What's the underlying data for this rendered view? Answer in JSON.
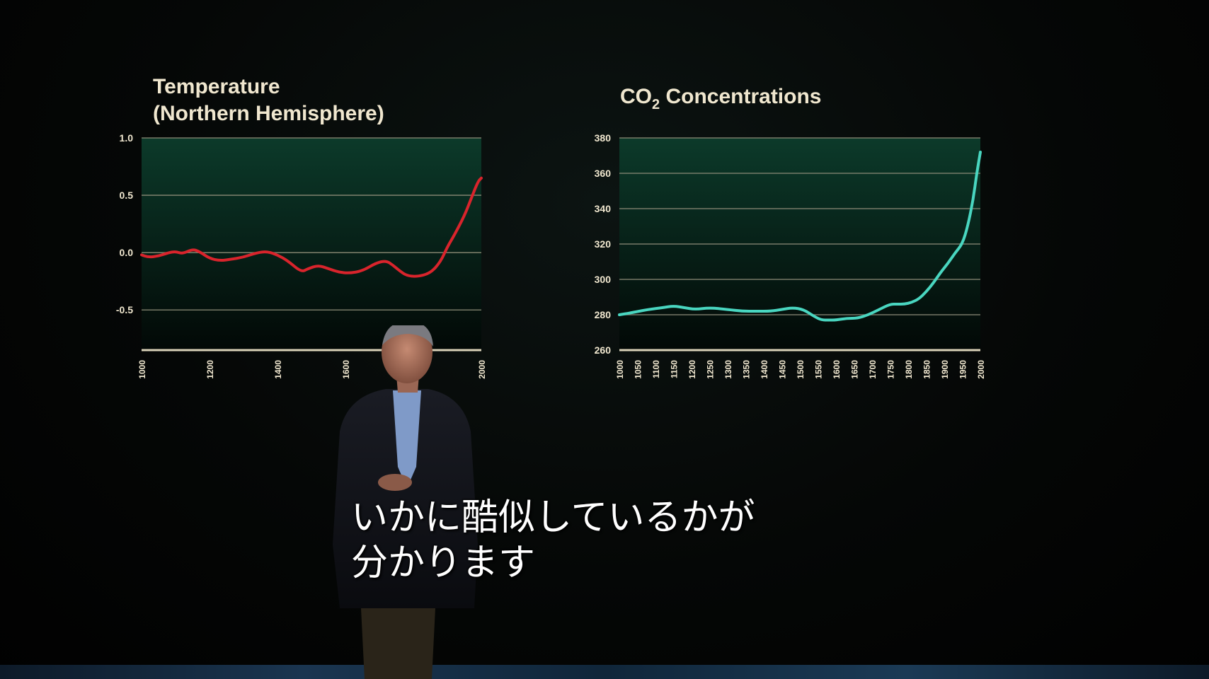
{
  "chart_data": [
    {
      "type": "line",
      "title": "Temperature (Northern Hemisphere)",
      "title_lines": [
        "Temperature",
        "(Northern Hemisphere)"
      ],
      "y_ticks": [
        "1.0",
        "0.5",
        "0.0",
        "-0.5"
      ],
      "x_ticks": [
        "1000",
        "1200",
        "1400",
        "1600",
        "2000"
      ],
      "ylim": [
        -0.85,
        1.0
      ],
      "xlim": [
        1000,
        2000
      ],
      "grid": true,
      "series": [
        {
          "color": "#d9242c",
          "x": [
            1000,
            1020,
            1050,
            1080,
            1100,
            1120,
            1150,
            1170,
            1200,
            1230,
            1260,
            1300,
            1340,
            1370,
            1400,
            1430,
            1470,
            1490,
            1520,
            1550,
            1580,
            1610,
            1650,
            1690,
            1720,
            1740,
            1760,
            1780,
            1810,
            1850,
            1880,
            1900,
            1920,
            1950,
            1970,
            1990,
            2000
          ],
          "values": [
            -0.02,
            -0.04,
            -0.03,
            0.0,
            0.01,
            -0.01,
            0.03,
            0.01,
            -0.05,
            -0.07,
            -0.06,
            -0.04,
            0.0,
            0.01,
            -0.02,
            -0.07,
            -0.17,
            -0.14,
            -0.11,
            -0.14,
            -0.17,
            -0.18,
            -0.16,
            -0.09,
            -0.07,
            -0.11,
            -0.16,
            -0.2,
            -0.21,
            -0.18,
            -0.08,
            0.05,
            0.15,
            0.32,
            0.47,
            0.62,
            0.65
          ]
        }
      ]
    },
    {
      "type": "line",
      "title": "CO₂ Concentrations",
      "title_main": "CO",
      "title_sub": "2",
      "title_rest": " Concentrations",
      "y_ticks": [
        "380",
        "360",
        "340",
        "320",
        "300",
        "280",
        "260"
      ],
      "x_ticks": [
        "1000",
        "1050",
        "1100",
        "1150",
        "1200",
        "1250",
        "1300",
        "1350",
        "1400",
        "1450",
        "1500",
        "1550",
        "1600",
        "1650",
        "1700",
        "1750",
        "1800",
        "1850",
        "1900",
        "1950",
        "2000"
      ],
      "ylim": [
        260,
        380
      ],
      "xlim": [
        1000,
        2000
      ],
      "grid": true,
      "series": [
        {
          "color": "#49d6c0",
          "x": [
            1000,
            1030,
            1080,
            1120,
            1150,
            1180,
            1210,
            1250,
            1300,
            1340,
            1380,
            1420,
            1450,
            1480,
            1510,
            1540,
            1560,
            1580,
            1600,
            1630,
            1660,
            1690,
            1720,
            1750,
            1770,
            1790,
            1810,
            1830,
            1850,
            1870,
            1890,
            1910,
            1930,
            1950,
            1965,
            1980,
            1990,
            2000
          ],
          "values": [
            280,
            281,
            283,
            284,
            285,
            284,
            283,
            284,
            283,
            282,
            282,
            282,
            283,
            284,
            283,
            279,
            277,
            277,
            277,
            278,
            278,
            280,
            283,
            286,
            286,
            286,
            287,
            289,
            293,
            298,
            304,
            309,
            315,
            320,
            330,
            345,
            360,
            372
          ]
        }
      ]
    }
  ],
  "subtitle": {
    "line1": "いかに酷似しているかが",
    "line2": "分かります"
  },
  "colors": {
    "plot_top": "#0c3a2a",
    "plot_bottom": "#020806",
    "grid": "#8c8a76",
    "temp_line": "#d9242c",
    "co2_line": "#49d6c0"
  }
}
